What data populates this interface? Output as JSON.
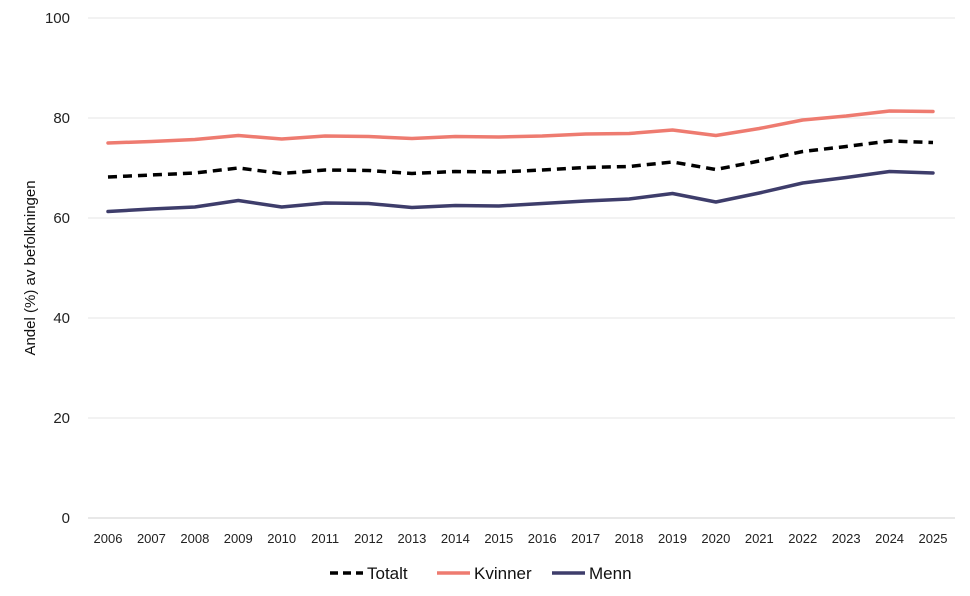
{
  "chart_data": {
    "type": "line",
    "title": "",
    "xlabel": "",
    "ylabel": "Andel (%) av befolkningen",
    "ylim": [
      0,
      100
    ],
    "yticks": [
      0,
      20,
      40,
      60,
      80,
      100
    ],
    "grid": true,
    "legend_position": "bottom",
    "x": [
      "2006",
      "2007",
      "2008",
      "2009",
      "2010",
      "2011",
      "2012",
      "2013",
      "2014",
      "2015",
      "2016",
      "2017",
      "2018",
      "2019",
      "2020",
      "2021",
      "2022",
      "2023",
      "2024",
      "2025"
    ],
    "series": [
      {
        "name": "Totalt",
        "color": "#000000",
        "style": "dashed",
        "values": [
          68.2,
          68.6,
          69.0,
          70.0,
          68.9,
          69.6,
          69.5,
          68.9,
          69.3,
          69.2,
          69.6,
          70.1,
          70.3,
          71.2,
          69.7,
          71.4,
          73.3,
          74.3,
          75.4,
          75.1
        ]
      },
      {
        "name": "Kvinner",
        "color": "#ee7b70",
        "style": "solid",
        "values": [
          75.0,
          75.3,
          75.7,
          76.5,
          75.8,
          76.4,
          76.3,
          75.9,
          76.3,
          76.2,
          76.4,
          76.8,
          76.9,
          77.6,
          76.5,
          77.9,
          79.6,
          80.4,
          81.4,
          81.3
        ]
      },
      {
        "name": "Menn",
        "color": "#3e3d6b",
        "style": "solid",
        "values": [
          61.3,
          61.8,
          62.2,
          63.5,
          62.2,
          63.0,
          62.9,
          62.1,
          62.5,
          62.4,
          62.9,
          63.4,
          63.8,
          64.9,
          63.2,
          65.0,
          67.0,
          68.1,
          69.3,
          69.0
        ]
      }
    ]
  }
}
